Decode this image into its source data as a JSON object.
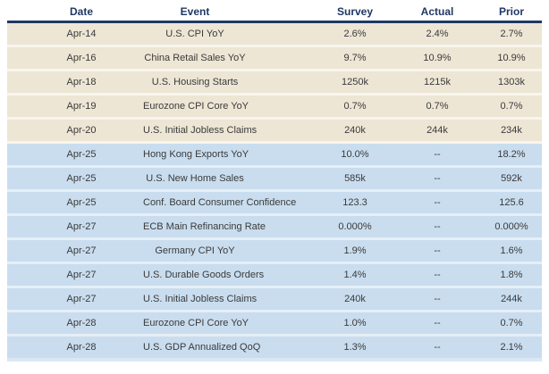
{
  "chart_data": {
    "type": "table",
    "title": "",
    "columns": [
      "Date",
      "Event",
      "Survey",
      "Actual",
      "Prior"
    ],
    "rows": [
      {
        "date": "Apr-14",
        "event": "U.S. CPI YoY",
        "survey": "2.6%",
        "actual": "2.4%",
        "prior": "2.7%",
        "band": "tan"
      },
      {
        "date": "Apr-16",
        "event": "China Retail Sales YoY",
        "survey": "9.7%",
        "actual": "10.9%",
        "prior": "10.9%",
        "band": "tan"
      },
      {
        "date": "Apr-18",
        "event": "U.S. Housing Starts",
        "survey": "1250k",
        "actual": "1215k",
        "prior": "1303k",
        "band": "tan"
      },
      {
        "date": "Apr-19",
        "event": "Eurozone CPI Core YoY",
        "survey": "0.7%",
        "actual": "0.7%",
        "prior": "0.7%",
        "band": "tan"
      },
      {
        "date": "Apr-20",
        "event": "U.S. Initial Jobless Claims",
        "survey": "240k",
        "actual": "244k",
        "prior": "234k",
        "band": "tan"
      },
      {
        "date": "Apr-25",
        "event": "Hong Kong Exports YoY",
        "survey": "10.0%",
        "actual": "--",
        "prior": "18.2%",
        "band": "blue"
      },
      {
        "date": "Apr-25",
        "event": "U.S. New Home Sales",
        "survey": "585k",
        "actual": "--",
        "prior": "592k",
        "band": "blue"
      },
      {
        "date": "Apr-25",
        "event": "Conf.  Board Consumer Confidence",
        "survey": "123.3",
        "actual": "--",
        "prior": "125.6",
        "band": "blue"
      },
      {
        "date": "Apr-27",
        "event": "ECB Main Refinancing Rate",
        "survey": "0.000%",
        "actual": "--",
        "prior": "0.000%",
        "band": "blue"
      },
      {
        "date": "Apr-27",
        "event": "Germany CPI YoY",
        "survey": "1.9%",
        "actual": "--",
        "prior": "1.6%",
        "band": "blue"
      },
      {
        "date": "Apr-27",
        "event": "U.S. Durable Goods Orders",
        "survey": "1.4%",
        "actual": "--",
        "prior": "1.8%",
        "band": "blue"
      },
      {
        "date": "Apr-27",
        "event": "U.S. Initial Jobless Claims",
        "survey": "240k",
        "actual": "--",
        "prior": "244k",
        "band": "blue"
      },
      {
        "date": "Apr-28",
        "event": "Eurozone CPI Core YoY",
        "survey": "1.0%",
        "actual": "--",
        "prior": "0.7%",
        "band": "blue"
      },
      {
        "date": "Apr-28",
        "event": "U.S. GDP Annualized QoQ",
        "survey": "1.3%",
        "actual": "--",
        "prior": "2.1%",
        "band": "blue"
      }
    ],
    "layout": {
      "grid": "horizontal row separators only",
      "header_rule": "thick navy line under header",
      "row_groups": [
        "tan = week of Apr-14..Apr-20",
        "blue = week of Apr-25..Apr-28"
      ]
    }
  },
  "empty_value": "--",
  "colors": {
    "header_text": "#1F3864",
    "header_rule": "#1F3864",
    "row_tan_bg": "#EDE6D5",
    "row_tan_gap": "#F8F5EE",
    "row_blue_bg": "#C9DDEF",
    "row_blue_gap": "#E6EFF7",
    "cell_text": "#3A3A3A",
    "bottom_strip": "#D9E8F4",
    "page_bg": "#FFFFFF"
  }
}
